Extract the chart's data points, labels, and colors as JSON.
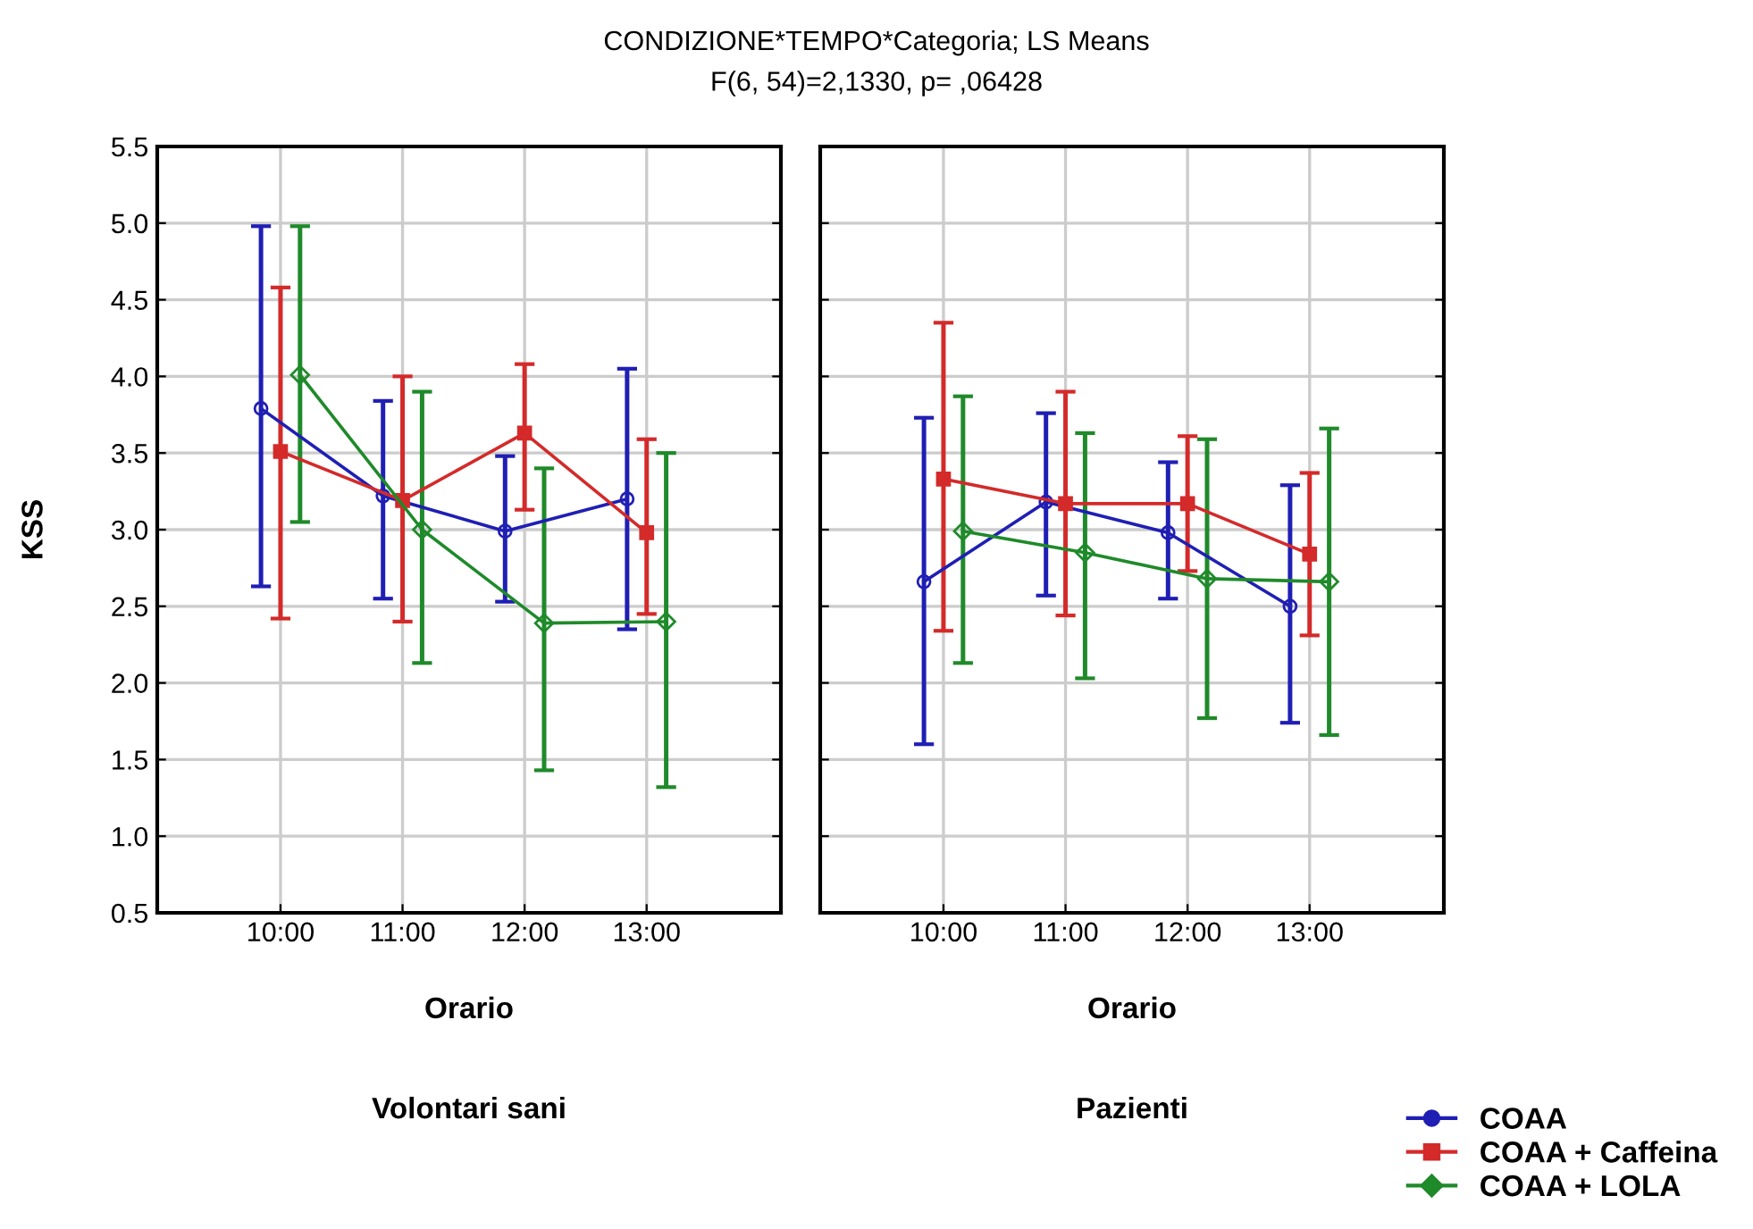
{
  "chart_data": [
    {
      "type": "line",
      "title": "CONDIZIONE*TEMPO*Categoria; LS Means",
      "subtitle": "F(6, 54)=2,1330, p= ,06428",
      "xlabel": "Orario",
      "ylabel": "KSS",
      "annotations": [
        "Volontari sani"
      ],
      "categories": [
        "10:00",
        "11:00",
        "12:00",
        "13:00"
      ],
      "ylim": [
        0.5,
        5.5
      ],
      "yticks": [
        {
          "value": 0.5,
          "label": "0.5"
        },
        {
          "value": 1.0,
          "label": "1.0"
        },
        {
          "value": 1.5,
          "label": "1.5"
        },
        {
          "value": 2.0,
          "label": "2.0"
        },
        {
          "value": 2.5,
          "label": "2.5"
        },
        {
          "value": 3.0,
          "label": "3.0"
        },
        {
          "value": 3.5,
          "label": "3.5"
        },
        {
          "value": 4.0,
          "label": "4.0"
        },
        {
          "value": 4.5,
          "label": "4.5"
        },
        {
          "value": 5.0,
          "label": "5.0"
        },
        {
          "value": 5.5,
          "label": "5.5"
        }
      ],
      "grid": true,
      "series": [
        {
          "color": "#1f1fb4",
          "marker": "circle",
          "values": [
            3.79,
            3.22,
            2.99,
            3.2
          ],
          "errors": [
            [
              2.63,
              4.98
            ],
            [
              2.55,
              3.84
            ],
            [
              2.53,
              3.48
            ],
            [
              2.35,
              4.05
            ]
          ]
        },
        {
          "color": "#d42a2a",
          "marker": "square",
          "values": [
            3.51,
            3.19,
            3.63,
            2.98
          ],
          "errors": [
            [
              2.42,
              4.58
            ],
            [
              2.4,
              4.0
            ],
            [
              3.13,
              4.08
            ],
            [
              2.45,
              3.59
            ]
          ]
        },
        {
          "color": "#1f8a2a",
          "marker": "diamond",
          "values": [
            4.01,
            3.0,
            2.39,
            2.4
          ],
          "errors": [
            [
              3.05,
              4.98
            ],
            [
              2.13,
              3.9
            ],
            [
              1.43,
              3.4
            ],
            [
              1.32,
              3.5
            ]
          ]
        }
      ]
    },
    {
      "type": "line",
      "xlabel": "Orario",
      "annotations": [
        "Pazienti"
      ],
      "categories": [
        "10:00",
        "11:00",
        "12:00",
        "13:00"
      ],
      "ylim": [
        0.5,
        5.5
      ],
      "yticks": [
        0.5,
        1.0,
        1.5,
        2.0,
        2.5,
        3.0,
        3.5,
        4.0,
        4.5,
        5.0,
        5.5
      ],
      "tick_labels": "x",
      "grid": true,
      "legend": "bottom right",
      "series": [
        {
          "name": "COAA",
          "color": "#1f1fb4",
          "marker": "circle",
          "values": [
            2.66,
            3.18,
            2.98,
            2.5
          ],
          "errors": [
            [
              1.6,
              3.73
            ],
            [
              2.57,
              3.76
            ],
            [
              2.55,
              3.44
            ],
            [
              1.74,
              3.29
            ]
          ]
        },
        {
          "name": "COAA + Caffeina",
          "color": "#d42a2a",
          "marker": "square",
          "values": [
            3.33,
            3.17,
            3.17,
            2.84
          ],
          "errors": [
            [
              2.34,
              4.35
            ],
            [
              2.44,
              3.9
            ],
            [
              2.73,
              3.61
            ],
            [
              2.31,
              3.37
            ]
          ]
        },
        {
          "name": "COAA + LOLA",
          "color": "#1f8a2a",
          "marker": "diamond",
          "values": [
            2.99,
            2.85,
            2.68,
            2.66
          ],
          "errors": [
            [
              2.13,
              3.87
            ],
            [
              2.03,
              3.63
            ],
            [
              1.77,
              3.59
            ],
            [
              1.66,
              3.66
            ]
          ]
        }
      ]
    }
  ]
}
